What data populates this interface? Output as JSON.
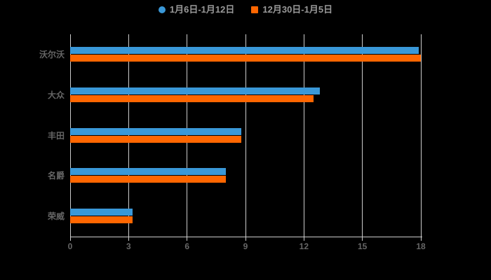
{
  "chart_data": {
    "type": "bar",
    "orientation": "horizontal",
    "title": "",
    "categories": [
      "沃尔沃",
      "大众",
      "丰田",
      "名爵",
      "荣威"
    ],
    "series": [
      {
        "name": "1月6日-1月12日",
        "color": "#3A98D8",
        "legend_marker": "circle",
        "values": [
          17.9,
          12.8,
          8.8,
          8.0,
          3.2
        ]
      },
      {
        "name": "12月30日-1月5日",
        "color": "#FF6600",
        "legend_marker": "square",
        "values": [
          18.0,
          12.5,
          8.8,
          8.0,
          3.2
        ]
      }
    ],
    "x_ticks": [
      "0",
      "3",
      "6",
      "9",
      "12",
      "15",
      "18"
    ],
    "xlim": [
      0,
      18
    ],
    "grid": true,
    "legend_position": "top-center",
    "colors": {
      "background": "#000000",
      "grid_line": "#cccccc",
      "axis_line": "#cccccc",
      "axis_label": "#666666",
      "legend_text": "#999999"
    }
  }
}
